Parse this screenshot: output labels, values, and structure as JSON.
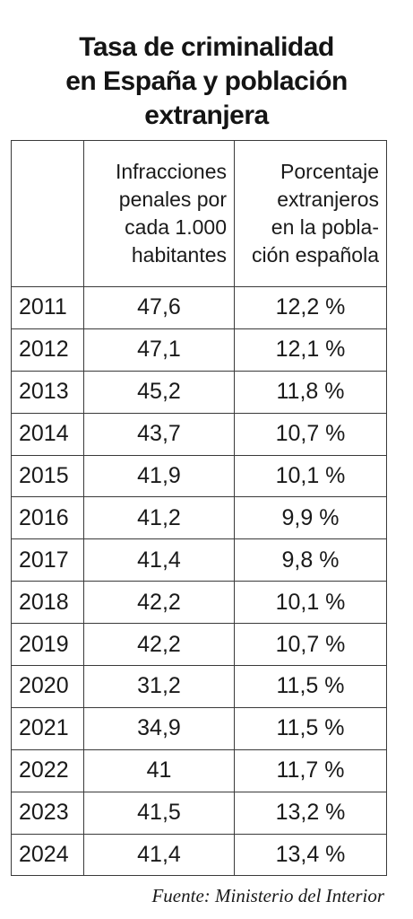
{
  "title": {
    "line1": "Tasa de criminalidad",
    "line2": "en España y población",
    "line3": "extranjera"
  },
  "table": {
    "header": {
      "year": "",
      "rate_lines": [
        "Infracciones",
        "penales por",
        "cada 1.000",
        "habitantes"
      ],
      "pct_lines": [
        "Porcentaje",
        "extranjeros",
        "en la pobla-",
        "ción española"
      ]
    },
    "rows": [
      {
        "year": "2011",
        "rate": "47,6",
        "pct": "12,2 %"
      },
      {
        "year": "2012",
        "rate": "47,1",
        "pct": "12,1 %"
      },
      {
        "year": "2013",
        "rate": "45,2",
        "pct": "11,8 %"
      },
      {
        "year": "2014",
        "rate": "43,7",
        "pct": "10,7 %"
      },
      {
        "year": "2015",
        "rate": "41,9",
        "pct": "10,1 %"
      },
      {
        "year": "2016",
        "rate": "41,2",
        "pct": "9,9 %"
      },
      {
        "year": "2017",
        "rate": "41,4",
        "pct": "9,8 %"
      },
      {
        "year": "2018",
        "rate": "42,2",
        "pct": "10,1 %"
      },
      {
        "year": "2019",
        "rate": "42,2",
        "pct": "10,7 %"
      },
      {
        "year": "2020",
        "rate": "31,2",
        "pct": "11,5 %"
      },
      {
        "year": "2021",
        "rate": "34,9",
        "pct": "11,5 %"
      },
      {
        "year": "2022",
        "rate": "41",
        "pct": "11,7 %"
      },
      {
        "year": "2023",
        "rate": "41,5",
        "pct": "13,2 %"
      },
      {
        "year": "2024",
        "rate": "41,4",
        "pct": "13,4 %"
      }
    ]
  },
  "source": "Fuente: Ministerio del Interior"
}
